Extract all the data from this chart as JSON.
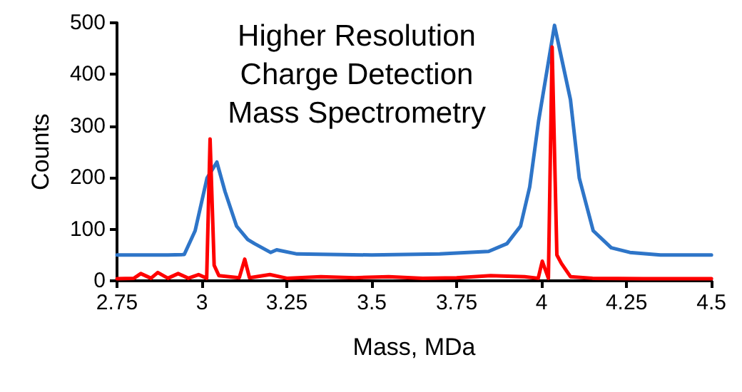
{
  "chart_data": {
    "type": "line",
    "xlabel": "Mass, MDa",
    "ylabel": "Counts",
    "annotations": [
      "Higher Resolution\nCharge Detection\nMass Spectrometry"
    ],
    "xlim": [
      2.75,
      4.5
    ],
    "xticks": [
      2.75,
      3,
      3.25,
      3.5,
      3.75,
      4,
      4.25,
      4.5
    ],
    "ylim": [
      0,
      500
    ],
    "yticks": [
      0,
      100,
      200,
      300,
      400,
      500
    ],
    "grid": false,
    "marker": "none",
    "line_style": "solid",
    "series": [
      {
        "color": "#2e75c8",
        "x": [
          2.75,
          2.9,
          2.948,
          2.98,
          3.015,
          3.044,
          3.068,
          3.102,
          3.135,
          3.155,
          3.202,
          3.22,
          3.28,
          3.5,
          3.7,
          3.844,
          3.898,
          3.938,
          3.965,
          3.991,
          4.038,
          4.085,
          4.111,
          4.152,
          4.205,
          4.26,
          4.35,
          4.5
        ],
        "values": [
          50,
          50,
          51,
          97,
          199,
          230,
          173,
          106,
          80,
          72,
          55,
          60,
          52,
          50,
          52,
          57,
          72,
          106,
          182,
          309,
          495,
          351,
          199,
          97,
          64,
          55,
          50,
          50
        ]
      },
      {
        "color": "#ff0000",
        "x": [
          2.75,
          2.8,
          2.82,
          2.85,
          2.87,
          2.9,
          2.93,
          2.96,
          2.99,
          3.014,
          3.024,
          3.036,
          3.05,
          3.08,
          3.11,
          3.126,
          3.14,
          3.2,
          3.25,
          3.35,
          3.45,
          3.55,
          3.65,
          3.75,
          3.85,
          3.95,
          3.99,
          4.002,
          4.02,
          4.031,
          4.045,
          4.058,
          4.085,
          4.15,
          4.3,
          4.5
        ],
        "values": [
          4,
          5,
          14,
          5,
          16,
          5,
          14,
          5,
          12,
          5,
          275,
          30,
          10,
          8,
          6,
          42,
          6,
          12,
          5,
          8,
          6,
          8,
          5,
          6,
          10,
          8,
          5,
          38,
          5,
          453,
          50,
          34,
          8,
          5,
          4,
          4
        ]
      }
    ]
  }
}
